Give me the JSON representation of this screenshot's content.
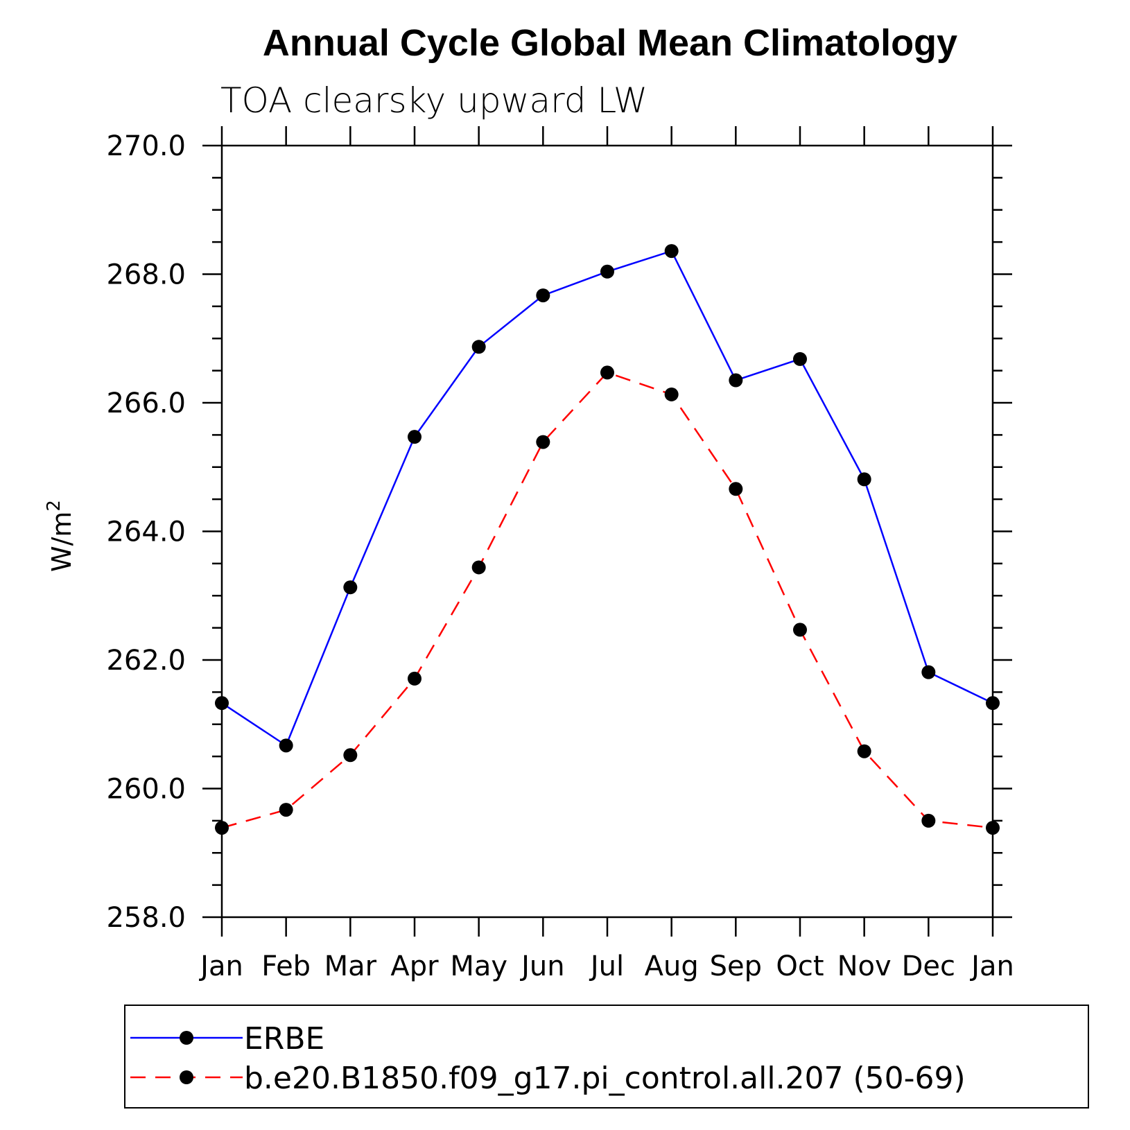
{
  "chart_data": {
    "type": "line",
    "title": "Annual Cycle Global Mean Climatology",
    "subtitle": "TOA clearsky upward LW",
    "ylabel": "W/m",
    "ylabel_sup": "2",
    "ylim": [
      258.0,
      270.0
    ],
    "y_ticks": [
      "258.0",
      "260.0",
      "262.0",
      "264.0",
      "266.0",
      "268.0",
      "270.0"
    ],
    "categories": [
      "Jan",
      "Feb",
      "Mar",
      "Apr",
      "May",
      "Jun",
      "Jul",
      "Aug",
      "Sep",
      "Oct",
      "Nov",
      "Dec",
      "Jan"
    ],
    "series": [
      {
        "name": "ERBE",
        "color": "#0000ff",
        "dash": "solid",
        "values": [
          261.33,
          260.67,
          263.13,
          265.47,
          266.87,
          267.67,
          268.04,
          268.36,
          266.35,
          266.68,
          264.81,
          261.81,
          261.33
        ]
      },
      {
        "name": "b.e20.B1850.f09_g17.pi_control.all.207 (50-69)",
        "color": "#ff0000",
        "dash": "dashed",
        "values": [
          259.39,
          259.67,
          260.52,
          261.71,
          263.44,
          265.39,
          266.47,
          266.13,
          264.66,
          262.47,
          260.58,
          259.5,
          259.39
        ]
      }
    ],
    "legend_position": "bottom",
    "marker_color": "#000000"
  }
}
